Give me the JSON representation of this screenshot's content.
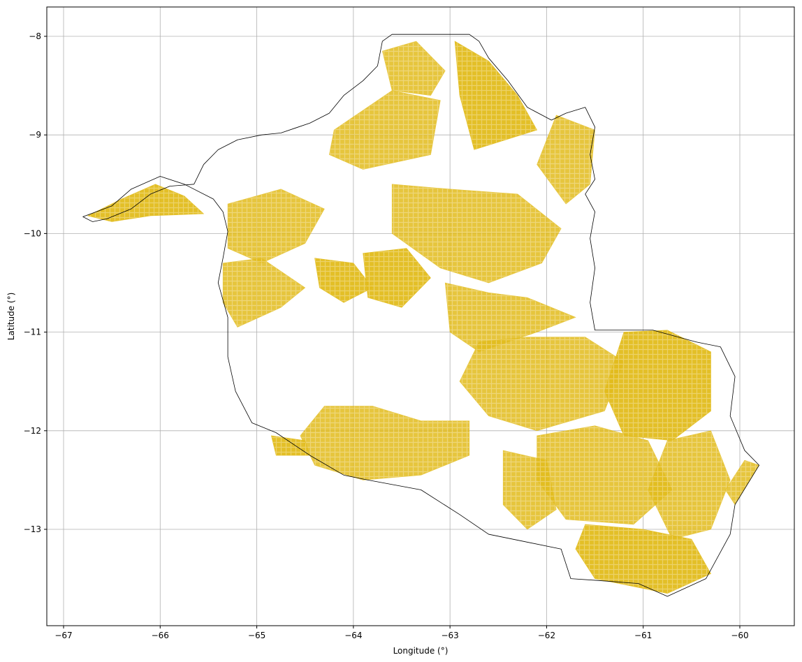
{
  "colors": {
    "parcel_fill": "#e2bc1c",
    "parcel_fill_light": "#ecd062",
    "boundary_stroke": "#000000",
    "grid": "#b0b0b0",
    "background": "#ffffff"
  },
  "axes": {
    "xlabel": "Longitude (°)",
    "ylabel": "Latitude (°)",
    "xlim": [
      -67.1,
      -59.5
    ],
    "ylim": [
      -14.05,
      -7.7
    ],
    "grid": true
  },
  "chart_data": {
    "type": "map",
    "x_ticks": [
      {
        "value": -67,
        "label": "−67"
      },
      {
        "value": -66,
        "label": "−66"
      },
      {
        "value": -65,
        "label": "−65"
      },
      {
        "value": -64,
        "label": "−64"
      },
      {
        "value": -63,
        "label": "−63"
      },
      {
        "value": -62,
        "label": "−62"
      },
      {
        "value": -61,
        "label": "−61"
      },
      {
        "value": -60,
        "label": "−60"
      }
    ],
    "y_ticks": [
      {
        "value": -8,
        "label": "−8"
      },
      {
        "value": -9,
        "label": "−9"
      },
      {
        "value": -10,
        "label": "−10"
      },
      {
        "value": -11,
        "label": "−11"
      },
      {
        "value": -12,
        "label": "−12"
      },
      {
        "value": -13,
        "label": "−13"
      }
    ],
    "boundary": [
      [
        -66.8,
        -9.83
      ],
      [
        -66.5,
        -9.72
      ],
      [
        -66.3,
        -9.55
      ],
      [
        -66.0,
        -9.42
      ],
      [
        -65.75,
        -9.5
      ],
      [
        -65.45,
        -9.65
      ],
      [
        -65.35,
        -9.78
      ],
      [
        -65.3,
        -9.98
      ],
      [
        -65.35,
        -10.25
      ],
      [
        -65.4,
        -10.5
      ],
      [
        -65.3,
        -10.85
      ],
      [
        -65.3,
        -11.25
      ],
      [
        -65.22,
        -11.6
      ],
      [
        -65.05,
        -11.92
      ],
      [
        -64.8,
        -12.02
      ],
      [
        -64.45,
        -12.25
      ],
      [
        -64.1,
        -12.45
      ],
      [
        -63.85,
        -12.5
      ],
      [
        -63.3,
        -12.6
      ],
      [
        -62.9,
        -12.85
      ],
      [
        -62.6,
        -13.05
      ],
      [
        -62.25,
        -13.12
      ],
      [
        -61.85,
        -13.2
      ],
      [
        -61.75,
        -13.5
      ],
      [
        -61.45,
        -13.52
      ],
      [
        -61.05,
        -13.55
      ],
      [
        -60.75,
        -13.68
      ],
      [
        -60.35,
        -13.5
      ],
      [
        -60.1,
        -13.05
      ],
      [
        -60.05,
        -12.75
      ],
      [
        -59.8,
        -12.35
      ],
      [
        -59.95,
        -12.2
      ],
      [
        -60.1,
        -11.85
      ],
      [
        -60.05,
        -11.45
      ],
      [
        -60.2,
        -11.15
      ],
      [
        -60.45,
        -11.1
      ],
      [
        -60.9,
        -10.98
      ],
      [
        -61.5,
        -10.98
      ],
      [
        -61.55,
        -10.7
      ],
      [
        -61.5,
        -10.35
      ],
      [
        -61.55,
        -10.05
      ],
      [
        -61.5,
        -9.78
      ],
      [
        -61.6,
        -9.6
      ],
      [
        -61.5,
        -9.45
      ],
      [
        -61.55,
        -9.2
      ],
      [
        -61.5,
        -8.92
      ],
      [
        -61.6,
        -8.72
      ],
      [
        -61.8,
        -8.78
      ],
      [
        -61.95,
        -8.85
      ],
      [
        -62.2,
        -8.72
      ],
      [
        -62.4,
        -8.45
      ],
      [
        -62.6,
        -8.22
      ],
      [
        -62.7,
        -8.05
      ],
      [
        -62.8,
        -7.98
      ],
      [
        -63.6,
        -7.98
      ],
      [
        -63.7,
        -8.05
      ],
      [
        -63.75,
        -8.3
      ],
      [
        -63.9,
        -8.45
      ],
      [
        -64.1,
        -8.6
      ],
      [
        -64.25,
        -8.78
      ],
      [
        -64.45,
        -8.88
      ],
      [
        -64.6,
        -8.93
      ],
      [
        -64.75,
        -8.98
      ],
      [
        -64.95,
        -9.0
      ],
      [
        -65.2,
        -9.05
      ],
      [
        -65.4,
        -9.15
      ],
      [
        -65.55,
        -9.3
      ],
      [
        -65.65,
        -9.5
      ],
      [
        -65.9,
        -9.52
      ],
      [
        -66.1,
        -9.6
      ],
      [
        -66.3,
        -9.75
      ],
      [
        -66.55,
        -9.85
      ],
      [
        -66.7,
        -9.88
      ]
    ],
    "parcel_regions": [
      [
        [
          -66.75,
          -9.82
        ],
        [
          -66.4,
          -9.65
        ],
        [
          -66.05,
          -9.5
        ],
        [
          -65.75,
          -9.62
        ],
        [
          -65.55,
          -9.8
        ],
        [
          -66.1,
          -9.82
        ],
        [
          -66.5,
          -9.88
        ]
      ],
      [
        [
          -65.3,
          -9.7
        ],
        [
          -64.75,
          -9.55
        ],
        [
          -64.3,
          -9.75
        ],
        [
          -64.5,
          -10.1
        ],
        [
          -64.95,
          -10.3
        ],
        [
          -65.3,
          -10.15
        ]
      ],
      [
        [
          -65.35,
          -10.3
        ],
        [
          -64.95,
          -10.25
        ],
        [
          -64.5,
          -10.55
        ],
        [
          -64.75,
          -10.75
        ],
        [
          -65.2,
          -10.95
        ],
        [
          -65.35,
          -10.7
        ]
      ],
      [
        [
          -64.4,
          -10.25
        ],
        [
          -64.0,
          -10.3
        ],
        [
          -63.8,
          -10.55
        ],
        [
          -64.1,
          -10.7
        ],
        [
          -64.35,
          -10.55
        ]
      ],
      [
        [
          -64.2,
          -8.95
        ],
        [
          -63.6,
          -8.55
        ],
        [
          -63.1,
          -8.65
        ],
        [
          -63.2,
          -9.2
        ],
        [
          -63.9,
          -9.35
        ],
        [
          -64.25,
          -9.2
        ]
      ],
      [
        [
          -63.7,
          -8.15
        ],
        [
          -63.35,
          -8.05
        ],
        [
          -63.05,
          -8.35
        ],
        [
          -63.2,
          -8.6
        ],
        [
          -63.6,
          -8.55
        ]
      ],
      [
        [
          -62.95,
          -8.05
        ],
        [
          -62.6,
          -8.25
        ],
        [
          -62.3,
          -8.6
        ],
        [
          -62.1,
          -8.95
        ],
        [
          -62.75,
          -9.15
        ],
        [
          -62.9,
          -8.6
        ]
      ],
      [
        [
          -61.9,
          -8.8
        ],
        [
          -61.5,
          -8.95
        ],
        [
          -61.55,
          -9.5
        ],
        [
          -61.8,
          -9.7
        ],
        [
          -62.1,
          -9.3
        ]
      ],
      [
        [
          -63.6,
          -9.5
        ],
        [
          -63.0,
          -9.55
        ],
        [
          -62.3,
          -9.6
        ],
        [
          -61.85,
          -9.95
        ],
        [
          -62.05,
          -10.3
        ],
        [
          -62.6,
          -10.5
        ],
        [
          -63.1,
          -10.35
        ],
        [
          -63.6,
          -10.0
        ]
      ],
      [
        [
          -63.9,
          -10.2
        ],
        [
          -63.45,
          -10.15
        ],
        [
          -63.2,
          -10.45
        ],
        [
          -63.5,
          -10.75
        ],
        [
          -63.85,
          -10.65
        ]
      ],
      [
        [
          -63.05,
          -10.5
        ],
        [
          -62.6,
          -10.6
        ],
        [
          -62.2,
          -10.65
        ],
        [
          -61.7,
          -10.85
        ],
        [
          -62.1,
          -11.0
        ],
        [
          -62.7,
          -11.2
        ],
        [
          -63.0,
          -11.0
        ]
      ],
      [
        [
          -62.7,
          -11.1
        ],
        [
          -62.2,
          -11.05
        ],
        [
          -61.6,
          -11.05
        ],
        [
          -61.2,
          -11.3
        ],
        [
          -61.4,
          -11.8
        ],
        [
          -62.1,
          -12.0
        ],
        [
          -62.6,
          -11.85
        ],
        [
          -62.9,
          -11.5
        ]
      ],
      [
        [
          -61.2,
          -11.0
        ],
        [
          -60.75,
          -10.98
        ],
        [
          -60.3,
          -11.2
        ],
        [
          -60.3,
          -11.8
        ],
        [
          -60.7,
          -12.1
        ],
        [
          -61.2,
          -12.05
        ],
        [
          -61.4,
          -11.6
        ]
      ],
      [
        [
          -62.1,
          -12.05
        ],
        [
          -61.5,
          -11.95
        ],
        [
          -60.95,
          -12.1
        ],
        [
          -60.7,
          -12.6
        ],
        [
          -61.1,
          -12.95
        ],
        [
          -61.8,
          -12.9
        ],
        [
          -62.1,
          -12.5
        ]
      ],
      [
        [
          -60.75,
          -12.1
        ],
        [
          -60.3,
          -12.0
        ],
        [
          -60.1,
          -12.5
        ],
        [
          -60.3,
          -13.0
        ],
        [
          -60.7,
          -13.1
        ],
        [
          -60.95,
          -12.6
        ]
      ],
      [
        [
          -61.6,
          -12.95
        ],
        [
          -61.0,
          -13.0
        ],
        [
          -60.5,
          -13.1
        ],
        [
          -60.3,
          -13.45
        ],
        [
          -60.75,
          -13.65
        ],
        [
          -61.5,
          -13.5
        ],
        [
          -61.7,
          -13.2
        ]
      ],
      [
        [
          -62.45,
          -12.2
        ],
        [
          -62.0,
          -12.3
        ],
        [
          -61.9,
          -12.8
        ],
        [
          -62.2,
          -13.0
        ],
        [
          -62.45,
          -12.75
        ]
      ],
      [
        [
          -64.3,
          -11.75
        ],
        [
          -63.8,
          -11.75
        ],
        [
          -63.3,
          -11.9
        ],
        [
          -62.8,
          -11.9
        ],
        [
          -62.8,
          -12.25
        ],
        [
          -63.3,
          -12.45
        ],
        [
          -63.9,
          -12.5
        ],
        [
          -64.4,
          -12.35
        ],
        [
          -64.55,
          -12.05
        ]
      ],
      [
        [
          -64.85,
          -12.05
        ],
        [
          -64.5,
          -12.1
        ],
        [
          -64.45,
          -12.25
        ],
        [
          -64.8,
          -12.25
        ]
      ],
      [
        [
          -59.95,
          -12.3
        ],
        [
          -59.8,
          -12.35
        ],
        [
          -60.05,
          -12.75
        ],
        [
          -60.15,
          -12.6
        ]
      ]
    ]
  }
}
